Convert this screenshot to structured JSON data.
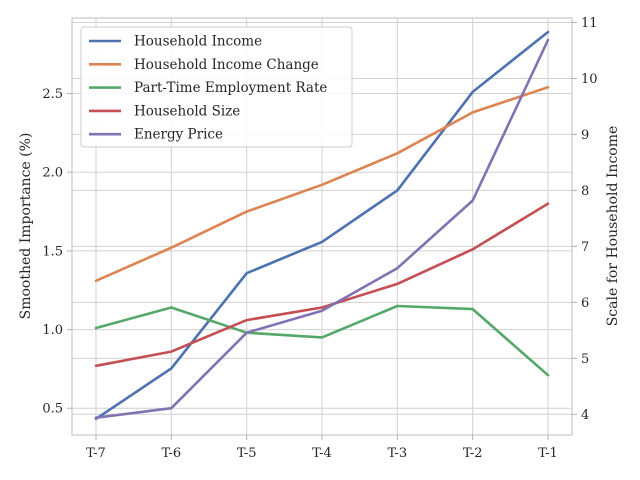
{
  "chart_data": {
    "type": "line",
    "categories": [
      "T-7",
      "T-6",
      "T-5",
      "T-4",
      "T-3",
      "T-2",
      "T-1"
    ],
    "ylabel": "Smoothed Importance (%)",
    "y2label": "Scale for Household Income",
    "ylim": [
      0.33,
      2.98
    ],
    "y2lim": [
      3.63,
      11.08
    ],
    "yticks": [
      "0.5",
      "1.0",
      "1.5",
      "2.0",
      "2.5"
    ],
    "y2ticks": [
      "4",
      "5",
      "6",
      "7",
      "8",
      "9",
      "10",
      "11"
    ],
    "grid": true,
    "legend_position": "upper-left",
    "series": [
      {
        "name": "Household Income",
        "axis": "right",
        "color": "#4c72b0",
        "values": [
          3.92,
          4.82,
          6.52,
          7.08,
          8.0,
          9.76,
          10.83
        ]
      },
      {
        "name": "Household Income Change",
        "axis": "left",
        "color": "#dd8452",
        "values": [
          1.31,
          1.52,
          1.75,
          1.92,
          2.12,
          2.38,
          2.54
        ]
      },
      {
        "name": "Part-Time Employment Rate",
        "axis": "left",
        "color": "#55a868",
        "values": [
          1.01,
          1.14,
          0.98,
          0.95,
          1.15,
          1.13,
          0.71
        ]
      },
      {
        "name": "Household Size",
        "axis": "left",
        "color": "#c44e52",
        "values": [
          0.77,
          0.86,
          1.06,
          1.14,
          1.29,
          1.51,
          1.8
        ]
      },
      {
        "name": "Energy Price",
        "axis": "left",
        "color": "#8172b3",
        "values": [
          0.44,
          0.5,
          0.98,
          1.12,
          1.39,
          1.82,
          2.84
        ]
      }
    ]
  }
}
